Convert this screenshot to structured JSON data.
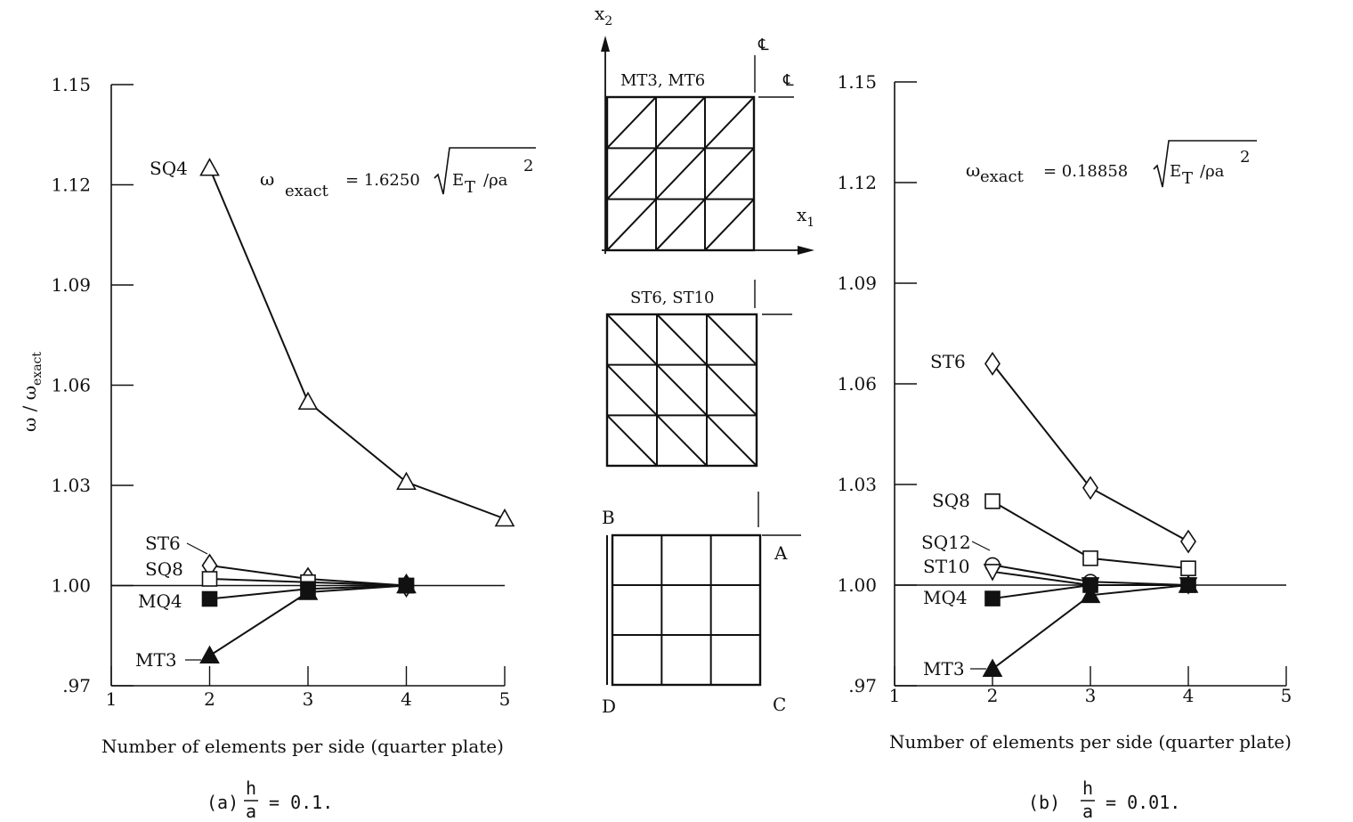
{
  "chart_data": [
    {
      "panel": "a",
      "type": "line",
      "ylabel": "ω / ω",
      "ylabel_sub": "exact",
      "xlabel": "Number of elements per side (quarter plate)",
      "caption_prefix": "(a)",
      "caption_num": "h",
      "caption_den": "a",
      "caption_value": "= 0.1.",
      "formula_omega": "ω",
      "formula_sub": "exact",
      "formula_eq": "= 1.6250",
      "formula_rad": "E",
      "formula_rad_sub": "T",
      "formula_tail": "/ρa",
      "formula_exp": "2",
      "xlim": [
        1,
        5
      ],
      "ylim": [
        0.97,
        1.15
      ],
      "x_ticks": [
        1,
        2,
        3,
        4,
        5
      ],
      "x_tick_labels": [
        "1",
        "2",
        "3",
        "4",
        "5"
      ],
      "y_ticks": [
        0.97,
        1.0,
        1.03,
        1.06,
        1.09,
        1.12,
        1.15
      ],
      "y_tick_labels": [
        ".97",
        "1.00",
        "1.03",
        "1.06",
        "1.09",
        "1.12",
        "1.15"
      ],
      "reference_line": 1.0,
      "series": [
        {
          "name": "SQ4",
          "marker": "triangle-open",
          "x": [
            2,
            3,
            4,
            5
          ],
          "y": [
            1.125,
            1.055,
            1.031,
            1.02
          ]
        },
        {
          "name": "ST6",
          "marker": "diamond-open",
          "x": [
            2,
            3,
            4
          ],
          "y": [
            1.006,
            1.002,
            1.0
          ]
        },
        {
          "name": "SQ8",
          "marker": "square-open",
          "x": [
            2,
            3,
            4
          ],
          "y": [
            1.002,
            1.001,
            1.0
          ]
        },
        {
          "name": "MQ4",
          "marker": "square-filled",
          "x": [
            2,
            3,
            4
          ],
          "y": [
            0.996,
            0.999,
            1.0
          ]
        },
        {
          "name": "MT3",
          "marker": "triangle-filled",
          "x": [
            2,
            3,
            4
          ],
          "y": [
            0.979,
            0.998,
            1.0
          ]
        }
      ]
    },
    {
      "panel": "b",
      "type": "line",
      "xlabel": "Number of elements per side (quarter plate)",
      "caption_prefix": "(b)",
      "caption_num": "h",
      "caption_den": "a",
      "caption_value": "= 0.01.",
      "formula_omega": "ω",
      "formula_sub": "exact",
      "formula_eq": "= 0.18858",
      "formula_rad": "E",
      "formula_rad_sub": "T",
      "formula_tail": "/ρa",
      "formula_exp": "2",
      "xlim": [
        1,
        5
      ],
      "ylim": [
        0.97,
        1.15
      ],
      "x_ticks": [
        1,
        2,
        3,
        4,
        5
      ],
      "x_tick_labels": [
        "1",
        "2",
        "3",
        "4",
        "5"
      ],
      "y_ticks": [
        0.97,
        1.0,
        1.03,
        1.06,
        1.09,
        1.12,
        1.15
      ],
      "y_tick_labels": [
        ".97",
        "1.00",
        "1.03",
        "1.06",
        "1.09",
        "1.12",
        "1.15"
      ],
      "reference_line": 1.0,
      "series": [
        {
          "name": "ST6",
          "marker": "diamond-open",
          "x": [
            2,
            3,
            4
          ],
          "y": [
            1.066,
            1.029,
            1.013
          ]
        },
        {
          "name": "SQ8",
          "marker": "square-open",
          "x": [
            2,
            3,
            4
          ],
          "y": [
            1.025,
            1.008,
            1.005
          ]
        },
        {
          "name": "SQ12",
          "marker": "circle-open",
          "x": [
            2,
            3,
            4
          ],
          "y": [
            1.006,
            1.001,
            1.0
          ]
        },
        {
          "name": "ST10",
          "marker": "triangle-down-open",
          "x": [
            2,
            3,
            4
          ],
          "y": [
            1.004,
            1.0,
            1.0
          ]
        },
        {
          "name": "MQ4",
          "marker": "square-filled",
          "x": [
            2,
            3,
            4
          ],
          "y": [
            0.996,
            1.0,
            1.0
          ]
        },
        {
          "name": "MT3",
          "marker": "triangle-filled",
          "x": [
            2,
            3,
            4
          ],
          "y": [
            0.975,
            0.997,
            1.0
          ]
        }
      ]
    }
  ],
  "meshes": {
    "axis_x1": "x",
    "axis_x1_sub": "1",
    "axis_x2": "x",
    "axis_x2_sub": "2",
    "centerline_symbol": "℄",
    "mesh1_label": "MT3, MT6",
    "mesh2_label": "ST6, ST10",
    "corner_a": "A",
    "corner_b": "B",
    "corner_c": "C",
    "corner_d": "D",
    "grid_n": 3
  }
}
